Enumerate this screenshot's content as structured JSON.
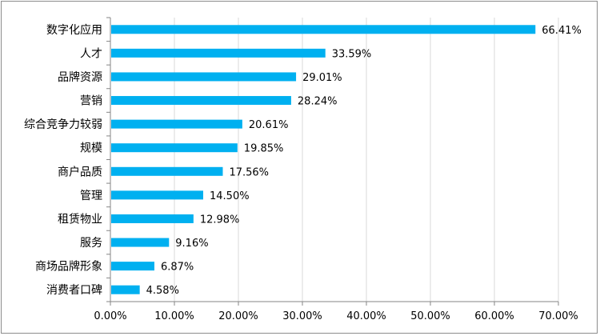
{
  "chart_data": {
    "type": "bar",
    "orientation": "horizontal",
    "categories": [
      "数字化应用",
      "人才",
      "品牌资源",
      "营销",
      "综合竞争力较弱",
      "规模",
      "商户品质",
      "管理",
      "租赁物业",
      "服务",
      "商场品牌形象",
      "消费者口碑"
    ],
    "values": [
      66.41,
      33.59,
      29.01,
      28.24,
      20.61,
      19.85,
      17.56,
      14.5,
      12.98,
      9.16,
      6.87,
      4.58
    ],
    "value_labels": [
      "66.41%",
      "33.59%",
      "29.01%",
      "28.24%",
      "20.61%",
      "19.85%",
      "17.56%",
      "14.50%",
      "12.98%",
      "9.16%",
      "6.87%",
      "4.58%"
    ],
    "x_ticks": [
      "0.00%",
      "10.00%",
      "20.00%",
      "30.00%",
      "40.00%",
      "50.00%",
      "60.00%",
      "70.00%"
    ],
    "xlim": [
      0,
      70
    ],
    "grid": true,
    "title": "",
    "xlabel": "",
    "ylabel": "",
    "colors": {
      "bar": "#00b0f0",
      "grid": "#d9d9d9",
      "axis": "#868686"
    }
  }
}
